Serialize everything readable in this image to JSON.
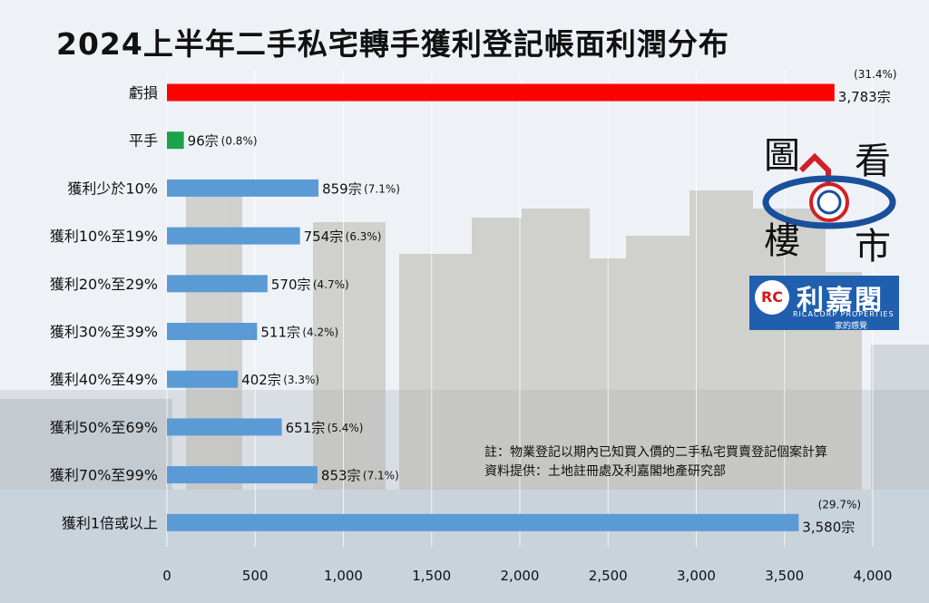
{
  "title": "2024上半年二手私宅轉手獲利登記帳面利潤分布",
  "notes": [
    "註：物業登記以期內已知買入價的二手私宅買賣登記個案計算",
    "資料提供：土地註冊處及利嘉閣地產研究部"
  ],
  "logo_texts": [
    "圖",
    "看",
    "樓",
    "市",
    "利嘉閣",
    "RICACORP PROPERTIES",
    "家的感覺"
  ],
  "colors": {
    "loss": "#ff0000",
    "even": "#1aa34a",
    "gain": "#5b9bd5",
    "text": "#111111"
  },
  "chart_data": {
    "type": "bar",
    "orientation": "horizontal",
    "categories": [
      "虧損",
      "平手",
      "獲利少於10%",
      "獲利10%至19%",
      "獲利20%至29%",
      "獲利30%至39%",
      "獲利40%至49%",
      "獲利50%至69%",
      "獲利70%至99%",
      "獲利1倍或以上"
    ],
    "values": [
      3783,
      96,
      859,
      754,
      570,
      511,
      402,
      651,
      853,
      3580
    ],
    "value_labels": [
      "3,783宗",
      "96宗",
      "859宗",
      "754宗",
      "570宗",
      "511宗",
      "402宗",
      "651宗",
      "853宗",
      "3,580宗"
    ],
    "percent_labels": [
      "(31.4%)",
      "(0.8%)",
      "(7.1%)",
      "(6.3%)",
      "(4.7%)",
      "(4.2%)",
      "(3.3%)",
      "(5.4%)",
      "(7.1%)",
      "(29.7%)"
    ],
    "xlim": [
      0,
      4000
    ],
    "xticks": [
      0,
      500,
      1000,
      1500,
      2000,
      2500,
      3000,
      3500,
      4000
    ],
    "xtick_labels": [
      "0",
      "500",
      "1,000",
      "1,500",
      "2,000",
      "2,500",
      "3,000",
      "3,500",
      "4,000"
    ],
    "grid": true,
    "legend": false
  }
}
